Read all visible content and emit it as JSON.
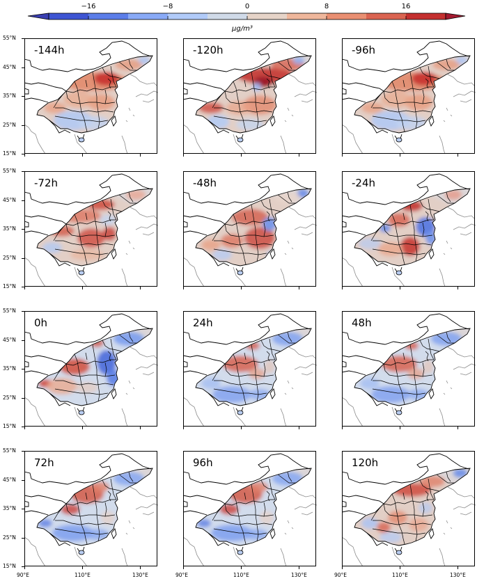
{
  "chart_data": {
    "type": "heatmap",
    "title": "",
    "description": "12-panel map grid of concentration anomaly over China at lead/lag hours",
    "colorbar": {
      "label": "μg/m³",
      "ticks": [
        -16,
        -8,
        0,
        8,
        16
      ],
      "tick_labels": [
        "−16",
        "−8",
        "0",
        "8",
        "16"
      ],
      "levels": [
        -20,
        -16,
        -12,
        -8,
        -4,
        0,
        4,
        8,
        12,
        16,
        20
      ],
      "extend": "both",
      "colors": [
        "#3b4cc0",
        "#5a78e0",
        "#7b9ff5",
        "#a5c2fb",
        "#cad7ec",
        "#e8d6cc",
        "#f2b9a0",
        "#ef9677",
        "#dd6a52",
        "#c13530",
        "#a5182d",
        "#2d3fb0"
      ]
    },
    "panels": [
      {
        "label": "-144h",
        "pattern": "warm-north"
      },
      {
        "label": "-120h",
        "pattern": "warm-strong-north"
      },
      {
        "label": "-96h",
        "pattern": "warm-north"
      },
      {
        "label": "-72h",
        "pattern": "warm-central"
      },
      {
        "label": "-48h",
        "pattern": "warm-central-blue-east"
      },
      {
        "label": "-24h",
        "pattern": "warm-blue-east"
      },
      {
        "label": "0h",
        "pattern": "blue-east-warm-west"
      },
      {
        "label": "24h",
        "pattern": "blue-south-warm-central"
      },
      {
        "label": "48h",
        "pattern": "blue-south-warm-central"
      },
      {
        "label": "72h",
        "pattern": "blue-south-warm-north"
      },
      {
        "label": "96h",
        "pattern": "blue-south-warm-north"
      },
      {
        "label": "120h",
        "pattern": "mixed-warm-north"
      }
    ],
    "y_ticks": [
      "55°N",
      "45°N",
      "35°N",
      "25°N",
      "15°N"
    ],
    "x_ticks": [
      "90°E",
      "110°E",
      "130°E"
    ],
    "xlim": [
      90,
      137
    ],
    "ylim": [
      15,
      55
    ]
  },
  "colorbar_label_html": "μg/m³"
}
